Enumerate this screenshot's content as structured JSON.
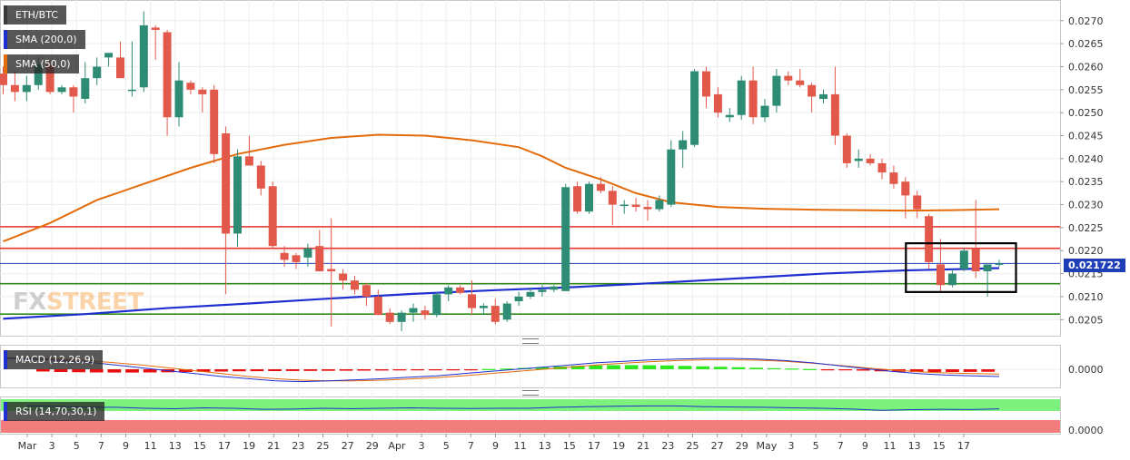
{
  "chart_data": [
    {
      "type": "candlestick",
      "pair": "ETH/BTC",
      "x_ticks": [
        "Mar",
        "3",
        "5",
        "7",
        "9",
        "11",
        "13",
        "15",
        "17",
        "19",
        "21",
        "23",
        "25",
        "27",
        "29",
        "Apr",
        "3",
        "5",
        "7",
        "9",
        "11",
        "13",
        "15",
        "17",
        "19",
        "21",
        "23",
        "25",
        "27",
        "29",
        "May",
        "3",
        "5",
        "7",
        "9",
        "11",
        "13",
        "15",
        "17"
      ],
      "y_ticks": [
        "0.0270",
        "0.0265",
        "0.0260",
        "0.0255",
        "0.0250",
        "0.0245",
        "0.0240",
        "0.0235",
        "0.0230",
        "0.0225",
        "0.0220",
        "0.0215",
        "0.0210",
        "0.0205"
      ],
      "ylim": [
        0.02015,
        0.02745
      ],
      "last_price_label": "0.021722",
      "last_price": 0.021722,
      "horizontal_levels": [
        {
          "value": 0.02252,
          "color": "#e8322c"
        },
        {
          "value": 0.02205,
          "color": "#e8322c"
        },
        {
          "value": 0.02128,
          "color": "#2f8a1a"
        },
        {
          "value": 0.02062,
          "color": "#2f8a1a"
        }
      ],
      "highlight_box": {
        "x_from": 0.0,
        "note": "rectangle around recent consolidation",
        "price_from": 0.0211,
        "price_to": 0.02216
      },
      "candles": [
        {
          "d": 1,
          "o": 0.02585,
          "h": 0.026,
          "l": 0.0254,
          "c": 0.0256
        },
        {
          "d": 2,
          "o": 0.0256,
          "h": 0.0259,
          "l": 0.02525,
          "c": 0.02545
        },
        {
          "d": 3,
          "o": 0.02545,
          "h": 0.0258,
          "l": 0.02525,
          "c": 0.0256
        },
        {
          "d": 4,
          "o": 0.0256,
          "h": 0.0262,
          "l": 0.0255,
          "c": 0.02605
        },
        {
          "d": 5,
          "o": 0.02605,
          "h": 0.02615,
          "l": 0.0254,
          "c": 0.02545
        },
        {
          "d": 6,
          "o": 0.02545,
          "h": 0.0256,
          "l": 0.0254,
          "c": 0.02555
        },
        {
          "d": 7,
          "o": 0.02555,
          "h": 0.0256,
          "l": 0.025,
          "c": 0.02535
        },
        {
          "d": 8,
          "o": 0.0253,
          "h": 0.0261,
          "l": 0.0252,
          "c": 0.02575
        },
        {
          "d": 9,
          "o": 0.02575,
          "h": 0.0262,
          "l": 0.0256,
          "c": 0.026
        },
        {
          "d": 10,
          "o": 0.0262,
          "h": 0.0263,
          "l": 0.026,
          "c": 0.0263
        },
        {
          "d": 11,
          "o": 0.0262,
          "h": 0.02655,
          "l": 0.02575,
          "c": 0.02575
        },
        {
          "d": 12,
          "o": 0.0255,
          "h": 0.02655,
          "l": 0.02535,
          "c": 0.0255
        },
        {
          "d": 13,
          "o": 0.02555,
          "h": 0.0272,
          "l": 0.02545,
          "c": 0.0269
        },
        {
          "d": 14,
          "o": 0.02685,
          "h": 0.0269,
          "l": 0.02615,
          "c": 0.0268
        },
        {
          "d": 15,
          "o": 0.02675,
          "h": 0.0268,
          "l": 0.0245,
          "c": 0.0249
        },
        {
          "d": 16,
          "o": 0.0249,
          "h": 0.0261,
          "l": 0.0247,
          "c": 0.0257
        },
        {
          "d": 17,
          "o": 0.02565,
          "h": 0.0257,
          "l": 0.0254,
          "c": 0.0255
        },
        {
          "d": 18,
          "o": 0.0255,
          "h": 0.02555,
          "l": 0.025,
          "c": 0.0254
        },
        {
          "d": 19,
          "o": 0.0255,
          "h": 0.0256,
          "l": 0.0239,
          "c": 0.0241
        },
        {
          "d": 20,
          "o": 0.02455,
          "h": 0.0247,
          "l": 0.02105,
          "c": 0.02237
        },
        {
          "d": 21,
          "o": 0.02237,
          "h": 0.0242,
          "l": 0.02208,
          "c": 0.02405
        },
        {
          "d": 22,
          "o": 0.02405,
          "h": 0.0245,
          "l": 0.02385,
          "c": 0.02385
        },
        {
          "d": 23,
          "o": 0.02385,
          "h": 0.02395,
          "l": 0.0232,
          "c": 0.02335
        },
        {
          "d": 24,
          "o": 0.0234,
          "h": 0.0235,
          "l": 0.02205,
          "c": 0.0221
        },
        {
          "d": 25,
          "o": 0.02195,
          "h": 0.0221,
          "l": 0.02165,
          "c": 0.0218
        },
        {
          "d": 26,
          "o": 0.0219,
          "h": 0.02195,
          "l": 0.0216,
          "c": 0.02175
        },
        {
          "d": 27,
          "o": 0.02185,
          "h": 0.02215,
          "l": 0.02165,
          "c": 0.02205
        },
        {
          "d": 28,
          "o": 0.0221,
          "h": 0.02245,
          "l": 0.02155,
          "c": 0.02155
        },
        {
          "d": 29,
          "o": 0.0216,
          "h": 0.0227,
          "l": 0.02035,
          "c": 0.02155
        },
        {
          "d": 30,
          "o": 0.0215,
          "h": 0.0216,
          "l": 0.02115,
          "c": 0.02135
        },
        {
          "d": 31,
          "o": 0.02135,
          "h": 0.02145,
          "l": 0.02105,
          "c": 0.02115
        },
        {
          "d": 32,
          "o": 0.02125,
          "h": 0.0213,
          "l": 0.0208,
          "c": 0.021
        },
        {
          "d": 33,
          "o": 0.021,
          "h": 0.02115,
          "l": 0.0206,
          "c": 0.0206
        },
        {
          "d": 34,
          "o": 0.02065,
          "h": 0.02075,
          "l": 0.0204,
          "c": 0.02045
        },
        {
          "d": 35,
          "o": 0.02045,
          "h": 0.0207,
          "l": 0.02025,
          "c": 0.02065
        },
        {
          "d": 36,
          "o": 0.02065,
          "h": 0.02085,
          "l": 0.02045,
          "c": 0.02075
        },
        {
          "d": 37,
          "o": 0.0207,
          "h": 0.0208,
          "l": 0.0205,
          "c": 0.0206
        },
        {
          "d": 38,
          "o": 0.0206,
          "h": 0.0211,
          "l": 0.02055,
          "c": 0.02105
        },
        {
          "d": 39,
          "o": 0.02105,
          "h": 0.02125,
          "l": 0.0209,
          "c": 0.0212
        },
        {
          "d": 40,
          "o": 0.0212,
          "h": 0.02125,
          "l": 0.02105,
          "c": 0.02108
        },
        {
          "d": 41,
          "o": 0.02105,
          "h": 0.02135,
          "l": 0.0206,
          "c": 0.02075
        },
        {
          "d": 42,
          "o": 0.02075,
          "h": 0.02085,
          "l": 0.0206,
          "c": 0.0208
        },
        {
          "d": 43,
          "o": 0.0208,
          "h": 0.02095,
          "l": 0.0204,
          "c": 0.02045
        },
        {
          "d": 44,
          "o": 0.0205,
          "h": 0.0209,
          "l": 0.02045,
          "c": 0.02085
        },
        {
          "d": 45,
          "o": 0.0209,
          "h": 0.0211,
          "l": 0.0208,
          "c": 0.021
        },
        {
          "d": 46,
          "o": 0.021,
          "h": 0.0212,
          "l": 0.02095,
          "c": 0.0211
        },
        {
          "d": 47,
          "o": 0.0211,
          "h": 0.02125,
          "l": 0.021,
          "c": 0.02115
        },
        {
          "d": 48,
          "o": 0.02115,
          "h": 0.02125,
          "l": 0.0211,
          "c": 0.02122
        },
        {
          "d": 49,
          "o": 0.02112,
          "h": 0.02345,
          "l": 0.02112,
          "c": 0.02338
        },
        {
          "d": 50,
          "o": 0.0234,
          "h": 0.0235,
          "l": 0.0228,
          "c": 0.02285
        },
        {
          "d": 51,
          "o": 0.02285,
          "h": 0.0235,
          "l": 0.0228,
          "c": 0.02345
        },
        {
          "d": 52,
          "o": 0.02345,
          "h": 0.0236,
          "l": 0.02325,
          "c": 0.0233
        },
        {
          "d": 53,
          "o": 0.0233,
          "h": 0.0234,
          "l": 0.02255,
          "c": 0.023
        },
        {
          "d": 54,
          "o": 0.023,
          "h": 0.0231,
          "l": 0.0228,
          "c": 0.023
        },
        {
          "d": 55,
          "o": 0.023,
          "h": 0.02315,
          "l": 0.02285,
          "c": 0.02295
        },
        {
          "d": 56,
          "o": 0.02295,
          "h": 0.0231,
          "l": 0.02265,
          "c": 0.0229
        },
        {
          "d": 57,
          "o": 0.0229,
          "h": 0.0232,
          "l": 0.02285,
          "c": 0.0231
        },
        {
          "d": 58,
          "o": 0.023,
          "h": 0.0244,
          "l": 0.02295,
          "c": 0.0242
        },
        {
          "d": 59,
          "o": 0.0242,
          "h": 0.0246,
          "l": 0.0238,
          "c": 0.0244
        },
        {
          "d": 60,
          "o": 0.0243,
          "h": 0.02595,
          "l": 0.02425,
          "c": 0.0259
        },
        {
          "d": 61,
          "o": 0.0259,
          "h": 0.026,
          "l": 0.0251,
          "c": 0.02535
        },
        {
          "d": 62,
          "o": 0.0254,
          "h": 0.02555,
          "l": 0.0249,
          "c": 0.025
        },
        {
          "d": 63,
          "o": 0.0249,
          "h": 0.0251,
          "l": 0.0248,
          "c": 0.02495
        },
        {
          "d": 64,
          "o": 0.02495,
          "h": 0.0258,
          "l": 0.02485,
          "c": 0.0257
        },
        {
          "d": 65,
          "o": 0.0257,
          "h": 0.026,
          "l": 0.02475,
          "c": 0.0249
        },
        {
          "d": 66,
          "o": 0.0249,
          "h": 0.0253,
          "l": 0.0248,
          "c": 0.02515
        },
        {
          "d": 67,
          "o": 0.02515,
          "h": 0.02595,
          "l": 0.025,
          "c": 0.0258
        },
        {
          "d": 68,
          "o": 0.0258,
          "h": 0.0259,
          "l": 0.0256,
          "c": 0.0257
        },
        {
          "d": 69,
          "o": 0.0257,
          "h": 0.02595,
          "l": 0.02555,
          "c": 0.0256
        },
        {
          "d": 70,
          "o": 0.0256,
          "h": 0.02565,
          "l": 0.025,
          "c": 0.02535
        },
        {
          "d": 71,
          "o": 0.0253,
          "h": 0.0255,
          "l": 0.0252,
          "c": 0.0254
        },
        {
          "d": 72,
          "o": 0.0254,
          "h": 0.026,
          "l": 0.0243,
          "c": 0.0245
        },
        {
          "d": 73,
          "o": 0.0245,
          "h": 0.02455,
          "l": 0.0238,
          "c": 0.0239
        },
        {
          "d": 74,
          "o": 0.02395,
          "h": 0.0242,
          "l": 0.0238,
          "c": 0.024
        },
        {
          "d": 75,
          "o": 0.024,
          "h": 0.0241,
          "l": 0.02385,
          "c": 0.0239
        },
        {
          "d": 76,
          "o": 0.0239,
          "h": 0.024,
          "l": 0.02355,
          "c": 0.0237
        },
        {
          "d": 77,
          "o": 0.0237,
          "h": 0.02385,
          "l": 0.02335,
          "c": 0.02345
        },
        {
          "d": 78,
          "o": 0.0235,
          "h": 0.0236,
          "l": 0.0227,
          "c": 0.0232
        },
        {
          "d": 79,
          "o": 0.0232,
          "h": 0.0233,
          "l": 0.0227,
          "c": 0.0229
        },
        {
          "d": 80,
          "o": 0.02275,
          "h": 0.0228,
          "l": 0.0216,
          "c": 0.02175
        },
        {
          "d": 81,
          "o": 0.0217,
          "h": 0.02225,
          "l": 0.0211,
          "c": 0.02125
        },
        {
          "d": 82,
          "o": 0.02125,
          "h": 0.0216,
          "l": 0.0212,
          "c": 0.0215
        },
        {
          "d": 83,
          "o": 0.0216,
          "h": 0.02205,
          "l": 0.02155,
          "c": 0.022
        },
        {
          "d": 84,
          "o": 0.02205,
          "h": 0.0231,
          "l": 0.0214,
          "c": 0.02155
        },
        {
          "d": 85,
          "o": 0.02155,
          "h": 0.0217,
          "l": 0.021,
          "c": 0.0217
        },
        {
          "d": 86,
          "o": 0.0217,
          "h": 0.0218,
          "l": 0.02165,
          "c": 0.02172
        }
      ],
      "sma200": [
        [
          1,
          0.02052
        ],
        [
          8,
          0.02062
        ],
        [
          15,
          0.02075
        ],
        [
          22,
          0.02085
        ],
        [
          29,
          0.02096
        ],
        [
          36,
          0.02106
        ],
        [
          43,
          0.02114
        ],
        [
          50,
          0.02121
        ],
        [
          57,
          0.0213
        ],
        [
          64,
          0.0214
        ],
        [
          71,
          0.0215
        ],
        [
          78,
          0.02157
        ],
        [
          83,
          0.0216
        ],
        [
          86,
          0.02162
        ]
      ],
      "sma50": [
        [
          1,
          0.0222
        ],
        [
          5,
          0.0226
        ],
        [
          9,
          0.0231
        ],
        [
          13,
          0.02345
        ],
        [
          17,
          0.0238
        ],
        [
          21,
          0.0241
        ],
        [
          25,
          0.0243
        ],
        [
          29,
          0.02445
        ],
        [
          33,
          0.02452
        ],
        [
          37,
          0.0245
        ],
        [
          41,
          0.0244
        ],
        [
          45,
          0.02425
        ],
        [
          47,
          0.02405
        ],
        [
          49,
          0.0238
        ],
        [
          52,
          0.02355
        ],
        [
          55,
          0.02325
        ],
        [
          58,
          0.02305
        ],
        [
          62,
          0.02295
        ],
        [
          66,
          0.02291
        ],
        [
          70,
          0.02289
        ],
        [
          74,
          0.02288
        ],
        [
          78,
          0.02287
        ],
        [
          82,
          0.02288
        ],
        [
          86,
          0.0229
        ]
      ],
      "legend": [
        {
          "label": "ETH/BTC",
          "color": "#3a3a3a"
        },
        {
          "label": "SMA (200,0)",
          "color": "#1f2fd0"
        },
        {
          "label": "SMA (50,0)",
          "color": "#e36b0a"
        }
      ],
      "colors": {
        "up": "#2e8b74",
        "down": "#e2594b",
        "sma200": "#1f2fd0",
        "sma50": "#e36b0a",
        "price_line": "#1f3fb6"
      }
    },
    {
      "type": "macd",
      "label": "MACD (12,26,9)",
      "y_tick": "0.0000",
      "histogram": [
        -0.5,
        -0.6,
        -0.65,
        -0.7,
        -0.72,
        -0.72,
        -0.7,
        -0.66,
        -0.6,
        -0.55,
        -0.5,
        -0.45,
        -0.42,
        -0.4,
        -0.38,
        -0.36,
        -0.34,
        -0.32,
        -0.3,
        -0.28,
        -0.25,
        -0.2,
        -0.15,
        -0.1,
        -0.05,
        0.05,
        0.15,
        0.3,
        0.45,
        0.6,
        0.75,
        0.85,
        0.9,
        0.92,
        0.9,
        0.85,
        0.75,
        0.65,
        0.55,
        0.45,
        0.35,
        0.25,
        0.15,
        0.05,
        -0.05,
        -0.15,
        -0.3,
        -0.45,
        -0.55,
        -0.6,
        -0.6,
        -0.6,
        -0.58,
        -0.55
      ],
      "macd_line": [
        1.5,
        1.4,
        1.2,
        1.0,
        0.6,
        0.2,
        -0.2,
        -0.6,
        -1.0,
        -1.3,
        -1.6,
        -1.7,
        -1.6,
        -1.45,
        -1.3,
        -1.1,
        -0.9,
        -0.6,
        -0.3,
        0.0,
        0.3,
        0.6,
        0.9,
        1.1,
        1.3,
        1.4,
        1.5,
        1.5,
        1.4,
        1.2,
        0.9,
        0.5,
        0.1,
        -0.3,
        -0.6,
        -0.8,
        -0.9,
        -1.0
      ],
      "signal_line": [
        1.6,
        1.5,
        1.4,
        1.2,
        0.9,
        0.6,
        0.2,
        -0.2,
        -0.6,
        -1.0,
        -1.3,
        -1.5,
        -1.6,
        -1.6,
        -1.5,
        -1.35,
        -1.15,
        -0.9,
        -0.6,
        -0.3,
        0.0,
        0.3,
        0.6,
        0.85,
        1.05,
        1.2,
        1.3,
        1.3,
        1.25,
        1.1,
        0.85,
        0.55,
        0.2,
        -0.1,
        -0.35,
        -0.5,
        -0.6,
        -0.65
      ],
      "colors": {
        "hist_neg": "#e8100f",
        "hist_pos": "#2ee81f",
        "macd": "#1f2fd0",
        "signal": "#e36b0a"
      }
    },
    {
      "type": "rsi",
      "label": "RSI (14,70,30,1)",
      "y_tick": "0.0000",
      "zones": {
        "overbought_color": "#7cf27c",
        "oversold_color": "#f27c7c"
      },
      "rsi_line": [
        0.62,
        0.6,
        0.55,
        0.55,
        0.5,
        0.48,
        0.52,
        0.5,
        0.45,
        0.46,
        0.5,
        0.48,
        0.5,
        0.52,
        0.5,
        0.49,
        0.5,
        0.5,
        0.55,
        0.58,
        0.6,
        0.62,
        0.62,
        0.58,
        0.56,
        0.55,
        0.52,
        0.5,
        0.46,
        0.4,
        0.43,
        0.45,
        0.44,
        0.47
      ],
      "colors": {
        "rsi": "#1f2fd0"
      }
    }
  ]
}
